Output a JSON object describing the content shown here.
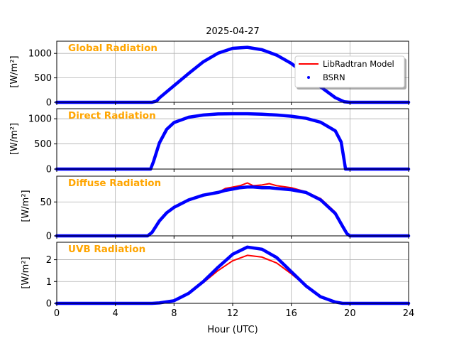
{
  "chart_data": {
    "type": "line",
    "title": "2025-04-27",
    "xlabel": "Hour (UTC)",
    "xlim": [
      0,
      24
    ],
    "xticks": [
      0,
      4,
      8,
      12,
      16,
      20,
      24
    ],
    "grid": true,
    "label_color": "#FFA500",
    "legend": {
      "placement": "top-right of first panel",
      "entries": [
        {
          "name": "LibRadtran Model",
          "color": "#FF0000",
          "style": "line"
        },
        {
          "name": "BSRN",
          "color": "#0000FF",
          "style": "marker"
        }
      ]
    },
    "panels": [
      {
        "label": "Global Radiation",
        "ylabel": "[W/m²]",
        "ylim": [
          0,
          1250
        ],
        "yticks": [
          0,
          500,
          1000
        ],
        "series": [
          {
            "name": "LibRadtran Model",
            "color": "#FF0000",
            "x": [
              0,
              6.5,
              6.8,
              7,
              8,
              9,
              10,
              11,
              12,
              13,
              14,
              15,
              16,
              17,
              18,
              19,
              19.6,
              20,
              24
            ],
            "y": [
              0,
              0,
              20,
              80,
              330,
              580,
              820,
              1000,
              1100,
              1120,
              1070,
              960,
              790,
              560,
              310,
              90,
              10,
              0,
              0
            ]
          },
          {
            "name": "BSRN",
            "color": "#0000FF",
            "x": [
              0,
              6.5,
              6.8,
              7,
              8,
              9,
              10,
              11,
              12,
              13,
              14,
              15,
              16,
              17,
              18,
              19,
              19.6,
              20,
              24
            ],
            "y": [
              0,
              0,
              25,
              90,
              340,
              590,
              830,
              1005,
              1105,
              1125,
              1075,
              965,
              795,
              565,
              315,
              95,
              12,
              0,
              0
            ]
          }
        ]
      },
      {
        "label": "Direct Radiation",
        "ylabel": "[W/m²]",
        "ylim": [
          0,
          1200
        ],
        "yticks": [
          0,
          500,
          1000
        ],
        "series": [
          {
            "name": "LibRadtran Model",
            "color": "#FF0000",
            "x": [
              0,
              6.4,
              6.6,
              7,
              7.5,
              8,
              9,
              10,
              11,
              12,
              13,
              14,
              15,
              16,
              17,
              18,
              19,
              19.4,
              19.6,
              19.7,
              24
            ],
            "y": [
              0,
              0,
              200,
              550,
              800,
              930,
              1030,
              1070,
              1090,
              1100,
              1100,
              1090,
              1075,
              1050,
              1010,
              930,
              760,
              550,
              200,
              0,
              0
            ]
          },
          {
            "name": "BSRN",
            "color": "#0000FF",
            "x": [
              0,
              6.4,
              6.6,
              7,
              7.5,
              8,
              9,
              10,
              11,
              12,
              13,
              14,
              15,
              16,
              17,
              18,
              19,
              19.4,
              19.6,
              19.7,
              24
            ],
            "y": [
              0,
              0,
              150,
              520,
              790,
              925,
              1030,
              1075,
              1095,
              1100,
              1100,
              1090,
              1075,
              1050,
              1010,
              930,
              760,
              540,
              180,
              0,
              0
            ]
          }
        ]
      },
      {
        "label": "Diffuse Radiation",
        "ylabel": "[W/m²]",
        "ylim": [
          0,
          88
        ],
        "yticks": [
          0,
          50
        ],
        "series": [
          {
            "name": "LibRadtran Model",
            "color": "#FF0000",
            "x": [
              0,
              6.2,
              6.5,
              7,
              7.5,
              8,
              9,
              10,
              11,
              11.5,
              12,
              12.5,
              13,
              13.4,
              14,
              14.5,
              15,
              16,
              17,
              18,
              19,
              19.5,
              19.8,
              20,
              24
            ],
            "y": [
              0,
              0,
              5,
              22,
              34,
              42,
              52,
              59,
              64,
              70,
              72,
              74,
              78,
              74,
              75,
              77,
              74,
              71,
              65,
              55,
              35,
              15,
              3,
              0,
              0
            ]
          },
          {
            "name": "BSRN",
            "color": "#0000FF",
            "x": [
              0,
              6.2,
              6.5,
              7,
              7.5,
              8,
              9,
              10,
              11,
              11.5,
              12,
              12.5,
              13,
              13.4,
              14,
              14.5,
              15,
              16,
              17,
              18,
              19,
              19.5,
              19.8,
              20,
              24
            ],
            "y": [
              0,
              0,
              5,
              22,
              34,
              42,
              53,
              60,
              64,
              67,
              69,
              71,
              72,
              72,
              71,
              71,
              70,
              68,
              64,
              53,
              33,
              14,
              3,
              0,
              0
            ]
          }
        ]
      },
      {
        "label": "UVB Radiation",
        "ylabel": "[W/m²]",
        "ylim": [
          0,
          2.8
        ],
        "yticks": [
          0,
          1,
          2
        ],
        "series": [
          {
            "name": "LibRadtran Model",
            "color": "#FF0000",
            "x": [
              0,
              6.5,
              7,
              8,
              9,
              10,
              11,
              12,
              13,
              14,
              15,
              16,
              17,
              18,
              19,
              19.5,
              24
            ],
            "y": [
              0,
              0,
              0.02,
              0.12,
              0.45,
              0.95,
              1.5,
              1.95,
              2.2,
              2.12,
              1.85,
              1.35,
              0.8,
              0.32,
              0.07,
              0,
              0
            ]
          },
          {
            "name": "BSRN",
            "color": "#0000FF",
            "x": [
              0,
              6.5,
              7,
              8,
              9,
              10,
              11,
              12,
              13,
              14,
              15,
              16,
              17,
              18,
              19,
              19.5,
              24
            ],
            "y": [
              0,
              0,
              0.02,
              0.12,
              0.46,
              1.0,
              1.65,
              2.25,
              2.58,
              2.48,
              2.1,
              1.45,
              0.8,
              0.3,
              0.06,
              0,
              0
            ]
          }
        ]
      }
    ]
  }
}
